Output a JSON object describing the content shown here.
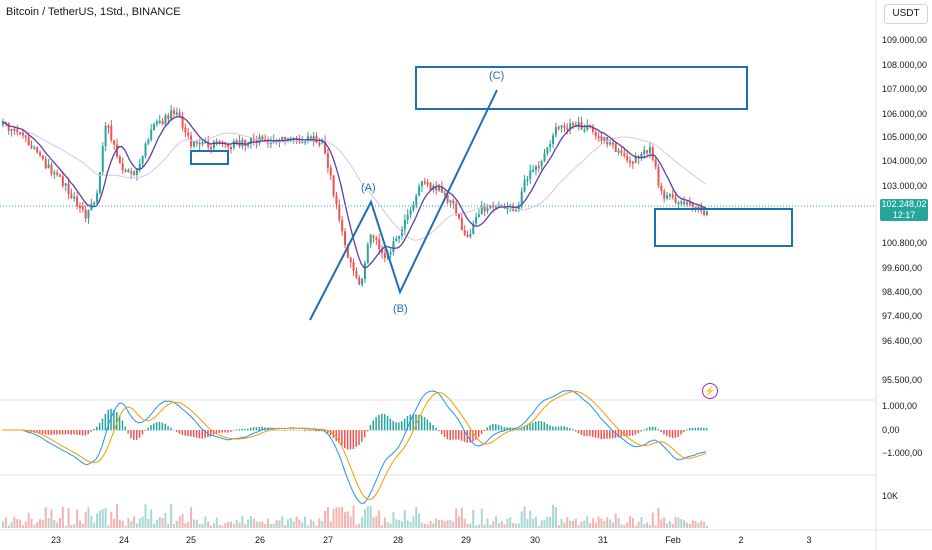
{
  "header": {
    "title": "Bitcoin / TetherUS, 1Std., BINANCE",
    "currency": "USDT"
  },
  "price_badge": {
    "price": "102.248,02",
    "countdown": "12:17"
  },
  "alert_icon": {
    "name": "lightning-icon",
    "glyph": "⚡"
  },
  "price_axis": {
    "labels": [
      "109.000,00",
      "108.000,00",
      "107.000,00",
      "106.000,00",
      "105.000,00",
      "104.000,00",
      "103.000,00",
      "100.800,00",
      "99.600,00",
      "98.400,00",
      "97.400,00",
      "96.400,00",
      "95.500,00"
    ]
  },
  "macd_axis": {
    "labels": [
      "1.000,00",
      "0,00",
      "−1.000,00"
    ]
  },
  "volume_axis": {
    "labels": [
      "10K"
    ]
  },
  "time_axis": {
    "labels": [
      "23",
      "24",
      "25",
      "26",
      "27",
      "28",
      "29",
      "30",
      "31",
      "Feb",
      "2",
      "3"
    ]
  },
  "annotations": {
    "a": "(A)",
    "b": "(B)",
    "c": "(C)"
  },
  "colors": {
    "bull": "#26a69a",
    "bear": "#ef5350",
    "drawing": "#1f6fb5",
    "ma_fast": "#5b3fa8",
    "ma_slow": "#d7c6e8",
    "macd": "#2196f3",
    "signal": "#ff9800",
    "price_line": "#26a69a"
  }
}
